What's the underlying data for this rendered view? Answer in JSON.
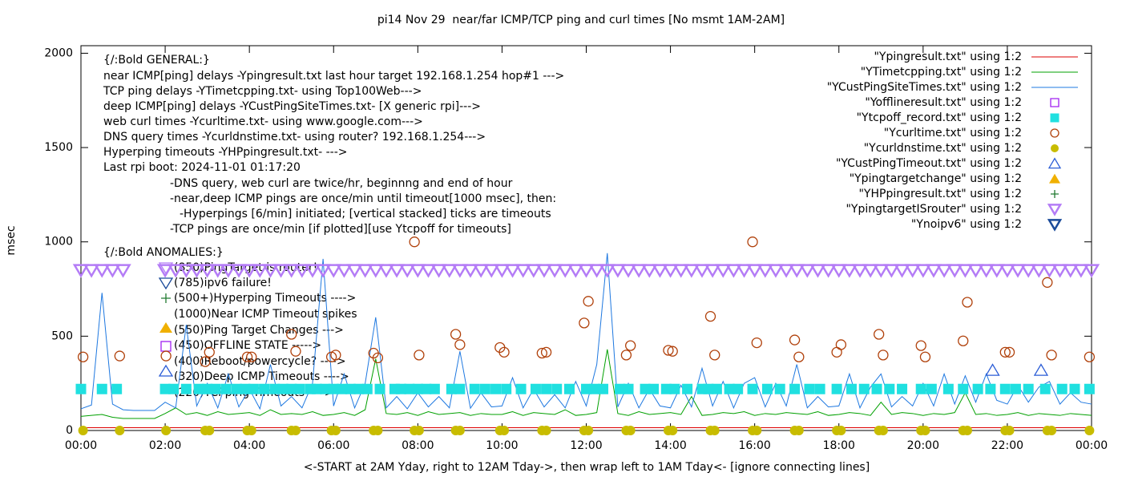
{
  "chart_data": {
    "type": "line",
    "title": "pi14 Nov 29  near/far ICMP/TCP ping and curl times [No msmt 1AM-2AM]",
    "x_label": "<-START at 2AM Yday, right to 12AM Tday->, then wrap left to 1AM Tday<- [ignore connecting lines]",
    "y_label": "msec",
    "xlim": [
      0,
      24
    ],
    "ylim": [
      0,
      2040
    ],
    "yticks": [
      0,
      500,
      1000,
      1500,
      2000
    ],
    "xticks": [
      {
        "value": 0,
        "label": "00:00"
      },
      {
        "value": 2,
        "label": "02:00"
      },
      {
        "value": 4,
        "label": "04:00"
      },
      {
        "value": 6,
        "label": "06:00"
      },
      {
        "value": 8,
        "label": "08:00"
      },
      {
        "value": 10,
        "label": "10:00"
      },
      {
        "value": 12,
        "label": "12:00"
      },
      {
        "value": 14,
        "label": "14:00"
      },
      {
        "value": 16,
        "label": "16:00"
      },
      {
        "value": 18,
        "label": "18:00"
      },
      {
        "value": 20,
        "label": "20:00"
      },
      {
        "value": 22,
        "label": "22:00"
      },
      {
        "value": 24,
        "label": "00:00"
      }
    ],
    "legend": "top-right",
    "grid": false,
    "annotations": {
      "general": [
        "{/:Bold GENERAL:}",
        "near ICMP[ping] delays -Ypingresult.txt last hour target 192.168.1.254 hop#1 --->",
        "TCP ping delays -YTimetcpping.txt- using Top100Web--->",
        "deep ICMP[ping] delays -YCustPingSiteTimes.txt- [X generic rpi]--->",
        "web curl times -Ycurltime.txt- using www.google.com--->",
        "DNS query times -Ycurldnstime.txt- using router? 192.168.1.254--->",
        "Hyperping timeouts -YHPpingresult.txt- --->",
        "Last rpi boot: 2024-11-01 01:17:20"
      ],
      "notes": [
        "-DNS query, web curl are twice/hr, beginnng and end of hour",
        "-near,deep ICMP pings are once/min until timeout[1000 msec], then:",
        "-Hyperpings [6/min] initiated; [vertical stacked] ticks are timeouts",
        "-TCP pings are once/min [if plotted][use Ytcpoff for timeouts]"
      ],
      "anomalies_title": "{/:Bold ANOMALIES:}",
      "anomalies": [
        "(850)PingTarget is router!",
        "(785)ipv6 failure!",
        "(500+)Hyperping Timeouts ---->",
        "(1000)Near ICMP Timeout spikes",
        "(550)Ping Target Changes --->",
        "(450)OFFLINE STATE ----->",
        "(400)Reboot/powercycle? ---->",
        "(320)Deep ICMP Timeouts ---->",
        "(220)TCPping Timeouts ---->"
      ]
    },
    "x": [
      0,
      0.25,
      0.5,
      0.75,
      1,
      1.25,
      1.5,
      1.75,
      2,
      2.25,
      2.5,
      2.75,
      3,
      3.25,
      3.5,
      3.75,
      4,
      4.25,
      4.5,
      4.75,
      5,
      5.25,
      5.5,
      5.75,
      6,
      6.25,
      6.5,
      6.75,
      7,
      7.25,
      7.5,
      7.75,
      8,
      8.25,
      8.5,
      8.75,
      9,
      9.25,
      9.5,
      9.75,
      10,
      10.25,
      10.5,
      10.75,
      11,
      11.25,
      11.5,
      11.75,
      12,
      12.25,
      12.5,
      12.75,
      13,
      13.25,
      13.5,
      13.75,
      14,
      14.25,
      14.5,
      14.75,
      15,
      15.25,
      15.5,
      15.75,
      16,
      16.25,
      16.5,
      16.75,
      17,
      17.25,
      17.5,
      17.75,
      18,
      18.25,
      18.5,
      18.75,
      19,
      19.25,
      19.5,
      19.75,
      20,
      20.25,
      20.5,
      20.75,
      21,
      21.25,
      21.5,
      21.75,
      22,
      22.25,
      22.5,
      22.75,
      23,
      23.25,
      23.5,
      23.75,
      24
    ],
    "series": [
      {
        "name": "\"Ypingresult.txt\" using 1:2",
        "color": "#dd0000",
        "marker": "line",
        "values": [
          15,
          15,
          15,
          15,
          15,
          15,
          15,
          15,
          15,
          15,
          15,
          15,
          15,
          15,
          15,
          15,
          15,
          15,
          15,
          15,
          15,
          15,
          15,
          15,
          15,
          15,
          15,
          15,
          15,
          15,
          15,
          15,
          15,
          15,
          15,
          15,
          15,
          15,
          15,
          15,
          15,
          15,
          15,
          15,
          15,
          15,
          15,
          15,
          15,
          15,
          15,
          15,
          15,
          15,
          15,
          15,
          15,
          15,
          15,
          15,
          15,
          15,
          15,
          15,
          15,
          15,
          15,
          15,
          15,
          15,
          15,
          15,
          15,
          15,
          15,
          15,
          15,
          15,
          15,
          15,
          15,
          15,
          15,
          15,
          15,
          15,
          15,
          15,
          15,
          15,
          15,
          15,
          15,
          15,
          15,
          15,
          15
        ]
      },
      {
        "name": "\"YTimetcpping.txt\" using 1:2",
        "color": "#00a000",
        "marker": "line",
        "values": [
          75,
          80,
          85,
          70,
          64,
          64,
          64,
          64,
          90,
          120,
          85,
          95,
          80,
          100,
          85,
          90,
          95,
          80,
          110,
          85,
          90,
          85,
          100,
          80,
          85,
          95,
          80,
          110,
          380,
          90,
          85,
          95,
          80,
          100,
          85,
          90,
          95,
          80,
          90,
          85,
          85,
          100,
          80,
          95,
          90,
          85,
          110,
          80,
          85,
          95,
          430,
          90,
          80,
          100,
          85,
          90,
          95,
          85,
          180,
          80,
          85,
          95,
          90,
          100,
          80,
          90,
          85,
          95,
          90,
          85,
          100,
          80,
          85,
          95,
          90,
          80,
          150,
          85,
          95,
          90,
          80,
          90,
          85,
          95,
          200,
          85,
          90,
          80,
          85,
          95,
          80,
          90,
          85,
          80,
          90,
          85,
          80
        ]
      },
      {
        "name": "\"YCustPingSiteTimes.txt\" using 1:2",
        "color": "#1e78e0",
        "marker": "line",
        "values": [
          115,
          135,
          730,
          140,
          110,
          106,
          106,
          106,
          150,
          120,
          560,
          130,
          250,
          120,
          300,
          125,
          220,
          115,
          350,
          130,
          180,
          120,
          250,
          910,
          130,
          300,
          120,
          250,
          600,
          120,
          180,
          115,
          200,
          125,
          180,
          120,
          420,
          118,
          200,
          125,
          130,
          280,
          120,
          220,
          125,
          190,
          120,
          260,
          130,
          350,
          940,
          125,
          250,
          120,
          220,
          130,
          120,
          240,
          125,
          330,
          130,
          260,
          120,
          250,
          280,
          125,
          250,
          130,
          350,
          120,
          180,
          125,
          130,
          300,
          120,
          230,
          300,
          125,
          180,
          130,
          250,
          130,
          300,
          140,
          290,
          150,
          300,
          160,
          140,
          240,
          150,
          230,
          260,
          140,
          200,
          150,
          140
        ]
      },
      {
        "name": "\"Yofflineresult.txt\" using 1:2",
        "color": "#a020f0",
        "marker": "square-open",
        "x": [],
        "values": []
      },
      {
        "name": "\"Ytcpoff_record.txt\" using 1:2",
        "color": "#20e0e0",
        "marker": "square",
        "x": [
          0,
          0.5,
          0.85,
          2,
          2.2,
          2.5,
          2.8,
          3,
          3.2,
          3.45,
          3.7,
          3.9,
          4.1,
          4.35,
          4.6,
          4.8,
          5,
          5.2,
          5.45,
          5.6,
          5.8,
          6,
          6.2,
          6.4,
          6.6,
          6.8,
          7.1,
          7.45,
          7.6,
          7.8,
          8,
          8.2,
          8.4,
          8.8,
          9,
          9.35,
          9.6,
          9.85,
          10.1,
          10.45,
          10.8,
          11.05,
          11.3,
          11.6,
          12,
          12.2,
          12.4,
          12.8,
          13,
          13.4,
          13.6,
          13.9,
          14.1,
          14.4,
          14.75,
          14.9,
          15.1,
          15.4,
          15.6,
          15.95,
          16.3,
          16.6,
          16.95,
          17.3,
          17.55,
          17.95,
          18.3,
          18.6,
          18.9,
          19.2,
          19.5,
          19.95,
          20.2,
          20.6,
          20.95,
          21.3,
          21.6,
          21.95,
          22.2,
          22.5,
          22.9,
          23.3,
          23.6,
          23.95
        ],
        "values": [
          220,
          220,
          220,
          220,
          220,
          220,
          220,
          220,
          220,
          220,
          220,
          220,
          220,
          220,
          220,
          220,
          220,
          220,
          220,
          220,
          220,
          220,
          220,
          220,
          220,
          220,
          220,
          220,
          220,
          220,
          220,
          220,
          220,
          220,
          220,
          220,
          220,
          220,
          220,
          220,
          220,
          220,
          220,
          220,
          220,
          220,
          220,
          220,
          220,
          220,
          220,
          220,
          220,
          220,
          220,
          220,
          220,
          220,
          220,
          220,
          220,
          220,
          220,
          220,
          220,
          220,
          220,
          220,
          220,
          220,
          220,
          220,
          220,
          220,
          220,
          220,
          220,
          220,
          220,
          220,
          220,
          220,
          220,
          220
        ]
      },
      {
        "name": "\"Ycurltime.txt\" using 1:2",
        "color": "#b0400a",
        "marker": "circle-open",
        "x": [
          0.05,
          0.92,
          2.02,
          2.95,
          3.05,
          3.95,
          4.05,
          5,
          5.1,
          5.95,
          6.05,
          6.95,
          7.05,
          7.92,
          8.03,
          8.9,
          9,
          9.95,
          10.05,
          10.95,
          11.05,
          11.95,
          12.05,
          12.95,
          13.05,
          13.95,
          14.05,
          14.95,
          15.05,
          15.95,
          16.05,
          16.95,
          17.05,
          17.95,
          18.05,
          18.95,
          19.05,
          19.95,
          20.05,
          20.95,
          21.05,
          21.95,
          22.05,
          22.95,
          23.05,
          23.95
        ],
        "values": [
          390,
          395,
          395,
          365,
          415,
          390,
          390,
          510,
          420,
          390,
          400,
          410,
          385,
          1000,
          400,
          510,
          455,
          440,
          415,
          410,
          415,
          570,
          685,
          400,
          450,
          425,
          420,
          605,
          400,
          1000,
          465,
          480,
          390,
          415,
          455,
          510,
          400,
          450,
          390,
          475,
          680,
          415,
          415,
          785,
          400,
          390
        ]
      },
      {
        "name": "\"Ycurldnstime.txt\" using 1:2",
        "color": "#c8bc00",
        "marker": "circle",
        "x": [
          0.05,
          0.92,
          2.02,
          2.95,
          3.05,
          3.95,
          4.05,
          5,
          5.1,
          5.95,
          6.05,
          6.95,
          7.05,
          7.92,
          8.03,
          8.9,
          9,
          9.95,
          10.05,
          10.95,
          11.05,
          11.95,
          12.05,
          12.95,
          13.05,
          13.95,
          14.05,
          14.95,
          15.05,
          15.95,
          16.05,
          16.95,
          17.05,
          17.95,
          18.05,
          18.95,
          19.05,
          19.95,
          20.05,
          20.95,
          21.05,
          21.95,
          22.05,
          22.95,
          23.05,
          23.95
        ],
        "values": [
          0,
          0,
          0,
          0,
          0,
          0,
          0,
          0,
          0,
          0,
          0,
          0,
          0,
          0,
          0,
          0,
          0,
          0,
          0,
          0,
          0,
          0,
          0,
          0,
          0,
          0,
          0,
          0,
          0,
          0,
          0,
          0,
          0,
          0,
          0,
          0,
          0,
          0,
          0,
          0,
          0,
          0,
          0,
          0,
          0,
          0
        ]
      },
      {
        "name": "\"YCustPingTimeout.txt\" using 1:2",
        "color": "#2a5cd6",
        "marker": "triangle-open",
        "x": [
          21.65,
          22.8
        ],
        "values": [
          320,
          320
        ]
      },
      {
        "name": "\"Ypingtargetchange\" using 1:2",
        "color": "#f0b000",
        "marker": "triangle",
        "x": [],
        "values": []
      },
      {
        "name": "\"YHPpingresult.txt\" using 1:2",
        "color": "#207a30",
        "marker": "plus",
        "x": [],
        "values": []
      },
      {
        "name": "\"YpingtargetISrouter\" using 1:2",
        "color": "#b47cf6",
        "marker": "triangle-down-open",
        "values": [
          850,
          850,
          850,
          850,
          850,
          null,
          null,
          null,
          850,
          850,
          850,
          850,
          850,
          850,
          850,
          850,
          850,
          850,
          850,
          850,
          850,
          850,
          850,
          850,
          850,
          850,
          850,
          850,
          850,
          850,
          850,
          850,
          850,
          850,
          850,
          850,
          850,
          850,
          850,
          850,
          850,
          850,
          850,
          850,
          850,
          850,
          850,
          850,
          850,
          850,
          850,
          850,
          850,
          850,
          850,
          850,
          850,
          850,
          850,
          850,
          850,
          850,
          850,
          850,
          850,
          850,
          850,
          850,
          850,
          850,
          850,
          850,
          850,
          850,
          850,
          850,
          850,
          850,
          850,
          850,
          850,
          850,
          850,
          850,
          850,
          850,
          850,
          850,
          850,
          850,
          850,
          850,
          850,
          850,
          850,
          850,
          850
        ]
      },
      {
        "name": "\"Ynoipv6\" using 1:2",
        "color": "#1a4a9a",
        "marker": "triangle-down-open",
        "x": [],
        "values": []
      }
    ]
  }
}
